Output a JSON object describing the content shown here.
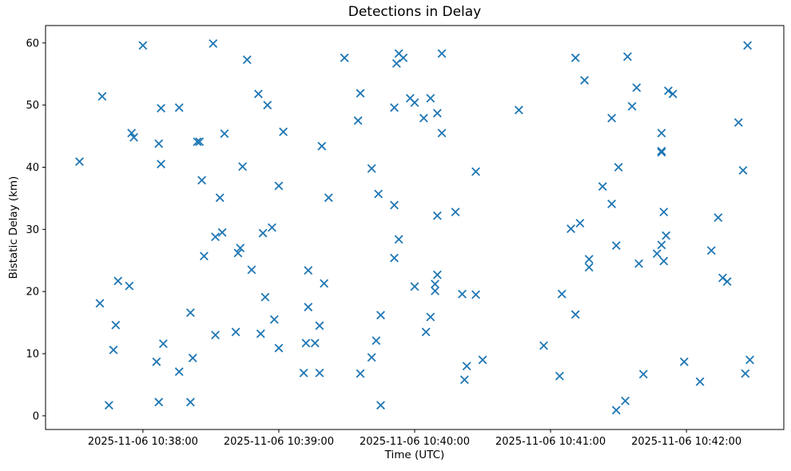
{
  "chart_data": {
    "type": "scatter",
    "title": "Detections in Delay",
    "xlabel": "Time (UTC)",
    "ylabel": "Bistatic Delay (km)",
    "marker": "x",
    "marker_color": "#1f77b4",
    "grid": false,
    "legend": null,
    "x_unit": "seconds since 2025-11-06 10:38:00 UTC",
    "xlim_seconds": [
      -43,
      283
    ],
    "ylim": [
      -2.2,
      62.8
    ],
    "x_tick_seconds": [
      0,
      60,
      120,
      180,
      240
    ],
    "x_tick_labels": [
      "2025-11-06 10:38:00",
      "2025-11-06 10:39:00",
      "2025-11-06 10:40:00",
      "2025-11-06 10:41:00",
      "2025-11-06 10:42:00"
    ],
    "y_ticks": [
      0,
      10,
      20,
      30,
      40,
      50,
      60
    ],
    "points": [
      [
        -28,
        40.9
      ],
      [
        -19,
        18.1
      ],
      [
        -18,
        51.4
      ],
      [
        -15,
        1.7
      ],
      [
        -13,
        10.6
      ],
      [
        -12,
        14.6
      ],
      [
        -11,
        21.7
      ],
      [
        -6,
        20.9
      ],
      [
        -5,
        45.5
      ],
      [
        -4,
        44.8
      ],
      [
        0,
        59.6
      ],
      [
        6,
        8.7
      ],
      [
        7,
        43.8
      ],
      [
        7,
        2.2
      ],
      [
        8,
        49.5
      ],
      [
        8,
        40.5
      ],
      [
        9,
        11.6
      ],
      [
        16,
        49.6
      ],
      [
        16,
        7.1
      ],
      [
        21,
        16.6
      ],
      [
        21,
        2.2
      ],
      [
        22,
        9.3
      ],
      [
        24,
        44.1
      ],
      [
        25,
        44.1
      ],
      [
        26,
        37.9
      ],
      [
        27,
        25.7
      ],
      [
        31,
        59.9
      ],
      [
        32,
        28.8
      ],
      [
        32,
        13.0
      ],
      [
        34,
        35.1
      ],
      [
        35,
        29.5
      ],
      [
        36,
        45.4
      ],
      [
        41,
        13.5
      ],
      [
        42,
        26.2
      ],
      [
        43,
        27.0
      ],
      [
        44,
        40.1
      ],
      [
        46,
        57.3
      ],
      [
        48,
        23.5
      ],
      [
        51,
        51.8
      ],
      [
        52,
        13.2
      ],
      [
        53,
        29.4
      ],
      [
        54,
        19.1
      ],
      [
        55,
        50.0
      ],
      [
        57,
        30.3
      ],
      [
        58,
        15.5
      ],
      [
        60,
        37.0
      ],
      [
        60,
        10.9
      ],
      [
        62,
        45.7
      ],
      [
        71,
        6.9
      ],
      [
        72,
        11.7
      ],
      [
        73,
        23.4
      ],
      [
        73,
        17.5
      ],
      [
        76,
        11.7
      ],
      [
        78,
        14.5
      ],
      [
        78,
        6.9
      ],
      [
        79,
        43.4
      ],
      [
        80,
        21.3
      ],
      [
        82,
        35.1
      ],
      [
        89,
        57.6
      ],
      [
        95,
        47.5
      ],
      [
        96,
        51.9
      ],
      [
        96,
        6.8
      ],
      [
        101,
        39.8
      ],
      [
        101,
        9.4
      ],
      [
        103,
        12.1
      ],
      [
        104,
        35.7
      ],
      [
        105,
        16.2
      ],
      [
        105,
        1.7
      ],
      [
        111,
        33.9
      ],
      [
        111,
        49.6
      ],
      [
        111,
        25.4
      ],
      [
        112,
        56.7
      ],
      [
        113,
        58.3
      ],
      [
        113,
        28.4
      ],
      [
        115,
        57.6
      ],
      [
        118,
        51.1
      ],
      [
        120,
        50.4
      ],
      [
        120,
        20.8
      ],
      [
        124,
        47.9
      ],
      [
        125,
        13.5
      ],
      [
        127,
        51.1
      ],
      [
        127,
        15.9
      ],
      [
        129,
        21.2
      ],
      [
        129,
        20.1
      ],
      [
        130,
        48.7
      ],
      [
        130,
        32.2
      ],
      [
        130,
        22.7
      ],
      [
        132,
        58.3
      ],
      [
        132,
        45.5
      ],
      [
        138,
        32.8
      ],
      [
        141,
        19.6
      ],
      [
        142,
        5.8
      ],
      [
        143,
        8.0
      ],
      [
        147,
        39.3
      ],
      [
        147,
        19.5
      ],
      [
        150,
        9.0
      ],
      [
        166,
        49.2
      ],
      [
        177,
        11.3
      ],
      [
        184,
        6.4
      ],
      [
        185,
        19.6
      ],
      [
        189,
        30.1
      ],
      [
        191,
        57.6
      ],
      [
        191,
        16.3
      ],
      [
        193,
        31.0
      ],
      [
        195,
        54.0
      ],
      [
        197,
        25.2
      ],
      [
        197,
        23.9
      ],
      [
        203,
        36.9
      ],
      [
        207,
        47.9
      ],
      [
        207,
        34.1
      ],
      [
        209,
        27.4
      ],
      [
        209,
        0.9
      ],
      [
        210,
        40.0
      ],
      [
        213,
        2.4
      ],
      [
        214,
        57.8
      ],
      [
        216,
        49.8
      ],
      [
        218,
        52.8
      ],
      [
        219,
        24.5
      ],
      [
        221,
        6.7
      ],
      [
        227,
        26.1
      ],
      [
        229,
        45.5
      ],
      [
        229,
        42.6
      ],
      [
        229,
        42.4
      ],
      [
        229,
        27.5
      ],
      [
        230,
        32.8
      ],
      [
        230,
        24.9
      ],
      [
        231,
        29.0
      ],
      [
        232,
        52.3
      ],
      [
        234,
        51.8
      ],
      [
        239,
        8.7
      ],
      [
        246,
        5.5
      ],
      [
        251,
        26.6
      ],
      [
        254,
        31.9
      ],
      [
        256,
        22.2
      ],
      [
        258,
        21.6
      ],
      [
        263,
        47.2
      ],
      [
        265,
        39.5
      ],
      [
        266,
        6.8
      ],
      [
        267,
        59.6
      ],
      [
        268,
        9.0
      ]
    ]
  }
}
